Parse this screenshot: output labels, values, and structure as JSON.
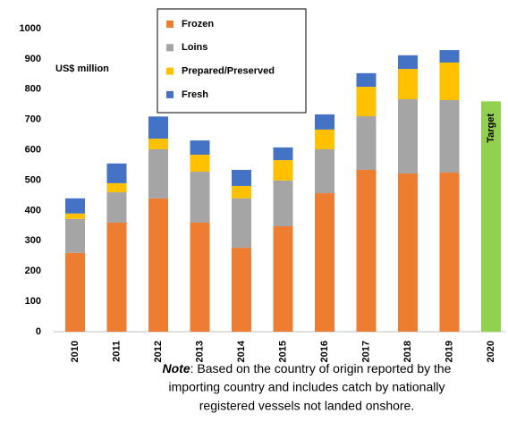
{
  "chart_data": {
    "type": "bar",
    "stacked": true,
    "y_label": "US$ million",
    "categories": [
      "2010",
      "2011",
      "2012",
      "2013",
      "2014",
      "2015",
      "2016",
      "2017",
      "2018",
      "2019",
      "2020"
    ],
    "series": [
      {
        "name": "Frozen",
        "color": "#ed7d31",
        "values": [
          260,
          360,
          440,
          360,
          277,
          348,
          457,
          534,
          522,
          525,
          null
        ]
      },
      {
        "name": "Loins",
        "color": "#a5a5a5",
        "values": [
          112,
          100,
          162,
          168,
          163,
          151,
          145,
          177,
          245,
          239,
          null
        ]
      },
      {
        "name": "Prepared/Preserved",
        "color": "#ffc000",
        "values": [
          18,
          30,
          35,
          56,
          41,
          67,
          65,
          97,
          100,
          124,
          null
        ]
      },
      {
        "name": "Fresh",
        "color": "#4472c4",
        "values": [
          50,
          65,
          73,
          47,
          53,
          42,
          50,
          45,
          45,
          41,
          null
        ]
      }
    ],
    "target": {
      "label": "Target",
      "value": 760,
      "color": "#92d050"
    },
    "ylim": [
      0,
      1000
    ],
    "yticks": [
      0,
      100,
      200,
      300,
      400,
      500,
      600,
      700,
      800,
      900,
      1000
    ],
    "grid": false,
    "note_label": "Note",
    "note_lines": [
      ": Based on the country of origin reported by the",
      "importing country and includes catch by nationally",
      "registered vessels not landed onshore."
    ]
  }
}
